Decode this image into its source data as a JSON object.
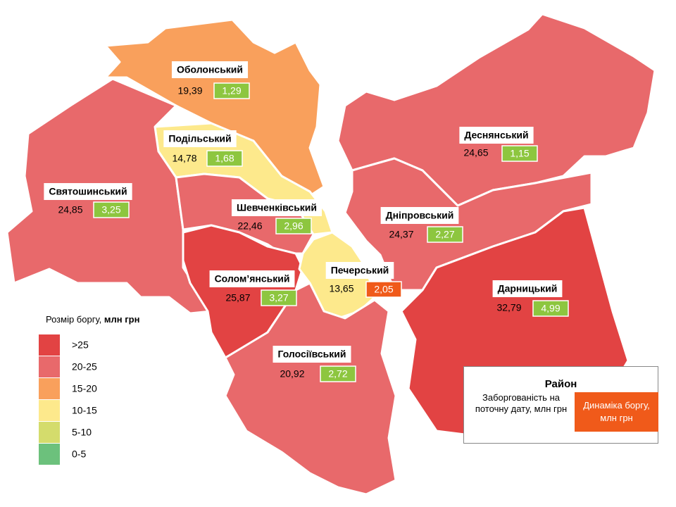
{
  "map": {
    "districts": [
      {
        "name": "Оболонський",
        "debt": "19,39",
        "change": "1,29",
        "fill": "#f9a05c",
        "change_color": "#8dc63f"
      },
      {
        "name": "Подільський",
        "debt": "14,78",
        "change": "1,68",
        "fill": "#fde98c",
        "change_color": "#8dc63f"
      },
      {
        "name": "Святошинський",
        "debt": "24,85",
        "change": "3,25",
        "fill": "#e8696b",
        "change_color": "#8dc63f"
      },
      {
        "name": "Шевченківський",
        "debt": "22,46",
        "change": "2,96",
        "fill": "#e8696b",
        "change_color": "#8dc63f"
      },
      {
        "name": "Солом’янський",
        "debt": "25,87",
        "change": "3,27",
        "fill": "#e24343",
        "change_color": "#8dc63f"
      },
      {
        "name": "Печерський",
        "debt": "13,65",
        "change": "2,05",
        "fill": "#fde98c",
        "change_color": "#f05a1a"
      },
      {
        "name": "Голосіївський",
        "debt": "20,92",
        "change": "2,72",
        "fill": "#e8696b",
        "change_color": "#8dc63f"
      },
      {
        "name": "Деснянський",
        "debt": "24,65",
        "change": "1,15",
        "fill": "#e8696b",
        "change_color": "#8dc63f"
      },
      {
        "name": "Дніпровський",
        "debt": "24,37",
        "change": "2,27",
        "fill": "#e8696b",
        "change_color": "#8dc63f"
      },
      {
        "name": "Дарницький",
        "debt": "32,79",
        "change": "4,99",
        "fill": "#e24343",
        "change_color": "#8dc63f"
      }
    ],
    "legend": {
      "title": "Розмір боргу,",
      "unit": "млн грн",
      "items": [
        {
          "label": ">25",
          "color": "#e24343"
        },
        {
          "label": "20-25",
          "color": "#e8696b"
        },
        {
          "label": "15-20",
          "color": "#f9a05c"
        },
        {
          "label": "10-15",
          "color": "#fde98c"
        },
        {
          "label": "5-10",
          "color": "#d4dc6c"
        },
        {
          "label": "0-5",
          "color": "#6cc17c"
        }
      ]
    },
    "key": {
      "title": "Район",
      "debt_label": "Заборгованість на поточну дату, млн грн",
      "change_label": "Динаміка боргу, млн грн",
      "change_color": "#f05a1a"
    }
  }
}
